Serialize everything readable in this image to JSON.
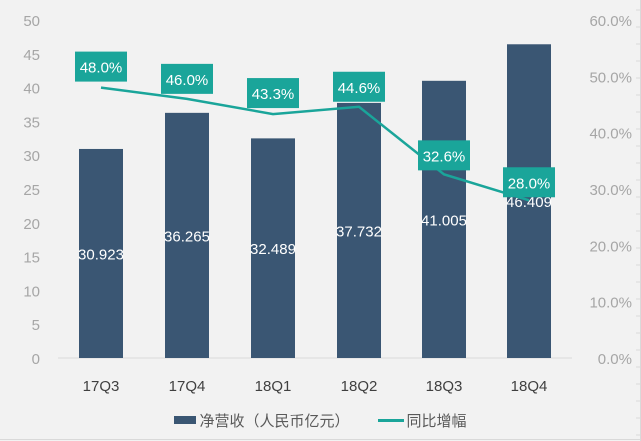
{
  "chart_data": {
    "type": "bar+line",
    "title": "",
    "categories": [
      "17Q3",
      "17Q4",
      "18Q1",
      "18Q2",
      "18Q3",
      "18Q4"
    ],
    "series": [
      {
        "name": "净营收（人民币亿元）",
        "type": "bar",
        "axis": "left",
        "color": "#3a5673",
        "values": [
          30.923,
          36.265,
          32.489,
          37.732,
          41.005,
          46.409
        ],
        "labels": [
          "30.923",
          "36.265",
          "32.489",
          "37.732",
          "41.005",
          "46.409"
        ]
      },
      {
        "name": "同比增幅",
        "type": "line",
        "axis": "right",
        "color": "#1aa59a",
        "values": [
          48.0,
          46.0,
          43.3,
          44.6,
          32.6,
          28.0
        ],
        "labels": [
          "48.0%",
          "46.0%",
          "43.3%",
          "44.6%",
          "32.6%",
          "28.0%"
        ]
      }
    ],
    "left_axis": {
      "ylim": [
        0,
        50
      ],
      "ticks": [
        "0",
        "5",
        "10",
        "15",
        "20",
        "25",
        "30",
        "35",
        "40",
        "45",
        "50"
      ]
    },
    "right_axis": {
      "ylim": [
        0,
        60
      ],
      "ticks": [
        "0.0%",
        "10.0%",
        "20.0%",
        "30.0%",
        "40.0%",
        "50.0%",
        "60.0%"
      ]
    },
    "xlabel": "",
    "ylabel": "",
    "grid": false,
    "legend_position": "bottom"
  },
  "legend": {
    "bar_label": "净营收（人民币亿元）",
    "line_label": "同比增幅"
  },
  "colors": {
    "bar": "#3a5673",
    "line": "#1aa59a",
    "background": "#f2f2f2",
    "axis_text": "#a6a6a6"
  }
}
